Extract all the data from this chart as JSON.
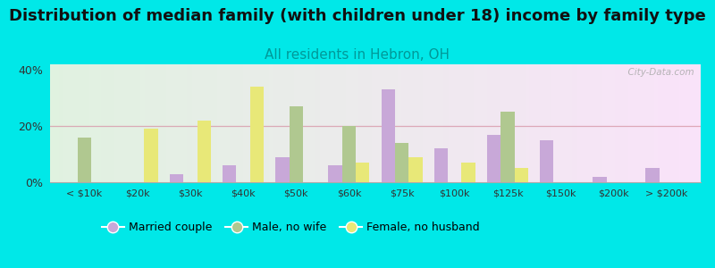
{
  "title": "Distribution of median family (with children under 18) income by family type",
  "subtitle": "All residents in Hebron, OH",
  "categories": [
    "< $10k",
    "$20k",
    "$30k",
    "$40k",
    "$50k",
    "$60k",
    "$75k",
    "$100k",
    "$125k",
    "$150k",
    "$200k",
    "> $200k"
  ],
  "married_couple": [
    0,
    0,
    3,
    6,
    9,
    6,
    33,
    12,
    17,
    15,
    2,
    5
  ],
  "male_no_wife": [
    16,
    0,
    0,
    0,
    27,
    20,
    14,
    0,
    25,
    0,
    0,
    0
  ],
  "female_no_husband": [
    0,
    19,
    22,
    34,
    0,
    7,
    9,
    7,
    5,
    0,
    0,
    0
  ],
  "married_color": "#c8a8d8",
  "male_color": "#b0c890",
  "female_color": "#e8e878",
  "background_color": "#00e8e8",
  "ylim": [
    0,
    42
  ],
  "yticks": [
    0,
    20,
    40
  ],
  "title_fontsize": 13,
  "subtitle_fontsize": 11,
  "watermark": "  City-Data.com"
}
